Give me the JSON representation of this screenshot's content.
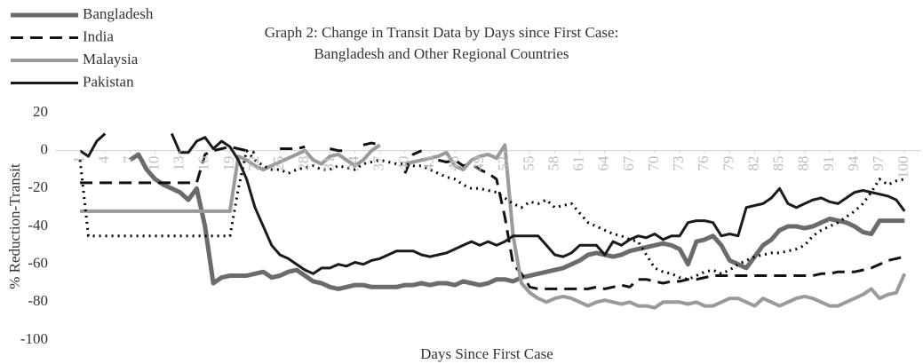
{
  "chart_data": {
    "type": "line",
    "title": [
      "Graph 2: Change in Transit Data by Days since First Case:",
      "Bangladesh and Other Regional Countries"
    ],
    "x_label": "Days Since First Case",
    "y_label": "% Reduction-Transit",
    "x": [
      1,
      2,
      3,
      4,
      5,
      6,
      7,
      8,
      9,
      10,
      11,
      12,
      13,
      14,
      15,
      16,
      17,
      18,
      19,
      20,
      21,
      22,
      23,
      24,
      25,
      26,
      27,
      28,
      29,
      30,
      31,
      32,
      33,
      34,
      35,
      36,
      37,
      38,
      39,
      40,
      41,
      42,
      43,
      44,
      45,
      46,
      47,
      48,
      49,
      50,
      51,
      52,
      53,
      54,
      55,
      56,
      57,
      58,
      59,
      60,
      61,
      62,
      63,
      64,
      65,
      66,
      67,
      68,
      69,
      70,
      71,
      72,
      73,
      74,
      75,
      76,
      77,
      78,
      79,
      80,
      81,
      82,
      83,
      84,
      85,
      86,
      87,
      88,
      89,
      90,
      91,
      92,
      93,
      94,
      95,
      96,
      97,
      98,
      99,
      100
    ],
    "xlim": [
      -2,
      102
    ],
    "xticks": [
      1,
      4,
      7,
      10,
      13,
      16,
      19,
      22,
      25,
      28,
      31,
      34,
      37,
      40,
      43,
      46,
      49,
      52,
      55,
      58,
      61,
      64,
      67,
      70,
      73,
      76,
      79,
      82,
      85,
      88,
      91,
      94,
      97,
      100
    ],
    "ylim": [
      -100,
      20
    ],
    "yticks": [
      -100,
      -80,
      -60,
      -40,
      -20,
      0,
      20
    ],
    "legend": "top-left",
    "series": [
      {
        "name": "Bangladesh",
        "color": "#6b6b6b",
        "width": 5,
        "dash": "solid",
        "values": [
          null,
          null,
          null,
          null,
          null,
          null,
          -5,
          -2,
          -10,
          -15,
          -18,
          -20,
          -22,
          -26,
          -20,
          -40,
          -70,
          -67,
          -66,
          -66,
          -66,
          -65,
          -64,
          -67,
          -66,
          -64,
          -63,
          -66,
          -69,
          -70,
          -72,
          -73,
          -72,
          -71,
          -71,
          -72,
          -72,
          -72,
          -72,
          -71,
          -71,
          -70,
          -71,
          -70,
          -70,
          -71,
          -69,
          -70,
          -71,
          -70,
          -68,
          -68,
          -69,
          -67,
          -66,
          -65,
          -64,
          -63,
          -62,
          -60,
          -58,
          -55,
          -54,
          -55,
          -56,
          -55,
          -53,
          -52,
          -51,
          -50,
          -49,
          -50,
          -52,
          -60,
          -48,
          -47,
          -45,
          -50,
          -58,
          -60,
          -62,
          -56,
          -50,
          -47,
          -42,
          -40,
          -40,
          -41,
          -40,
          -38,
          -36,
          -37,
          -38,
          -40,
          -43,
          -44,
          -37,
          -37,
          -37,
          -37
        ]
      },
      {
        "name": "India",
        "color": "#111111",
        "width": 3,
        "dash": "dashed",
        "values": [
          -17,
          -17,
          -17,
          -17,
          -17,
          -17,
          -17,
          -17,
          -17,
          -17,
          -17,
          -17,
          -17,
          -17,
          -17,
          -2,
          0,
          1,
          2,
          1,
          0,
          -1,
          null,
          null,
          1,
          1,
          1,
          2,
          null,
          null,
          1,
          0,
          0,
          null,
          3,
          4,
          3,
          null,
          null,
          -12,
          -2,
          0,
          null,
          -5,
          -6,
          -5,
          -8,
          -7,
          -10,
          -12,
          -15,
          -35,
          -60,
          -65,
          -72,
          -73,
          -73,
          -73,
          -73,
          -73,
          -73,
          -73,
          -72,
          -73,
          -72,
          -71,
          -72,
          -68,
          -68,
          -69,
          -70,
          -69,
          -69,
          -68,
          -68,
          -67,
          -66,
          -66,
          -66,
          -66,
          -66,
          -66,
          -66,
          -66,
          -66,
          -66,
          -66,
          -66,
          -66,
          -65,
          -65,
          -64,
          -64,
          -64,
          -63,
          -62,
          -60,
          -58,
          -57,
          -56
        ]
      },
      {
        "name": "Malaysia",
        "color": "#9a9a9a",
        "width": 4,
        "dash": "solid",
        "values": [
          -32,
          -32,
          -32,
          -32,
          -32,
          -32,
          -32,
          -32,
          -32,
          -32,
          -32,
          -32,
          -32,
          -32,
          -32,
          -32,
          -32,
          -32,
          -32,
          -3,
          -5,
          -8,
          -10,
          -8,
          -6,
          -4,
          -2,
          0,
          -5,
          -7,
          -3,
          -2,
          -5,
          -8,
          -5,
          0,
          3,
          null,
          null,
          -7,
          -6,
          -5,
          -4,
          -3,
          -1,
          -8,
          -10,
          -5,
          -3,
          -2,
          -4,
          3,
          -45,
          -70,
          -75,
          -78,
          -80,
          -78,
          -77,
          -78,
          -80,
          -82,
          -80,
          -79,
          -80,
          -81,
          -80,
          -82,
          -82,
          -83,
          -80,
          -80,
          -80,
          -81,
          -80,
          -82,
          -82,
          -80,
          -78,
          -78,
          -80,
          -82,
          -78,
          -80,
          -82,
          -80,
          -78,
          -77,
          -78,
          -80,
          -82,
          -82,
          -80,
          -78,
          -76,
          -73,
          -78,
          -76,
          -75,
          -65
        ]
      },
      {
        "name": "Pakistan",
        "color": "#1a1a1a",
        "width": 3,
        "dash": "solid",
        "values": [
          0,
          -3,
          5,
          9,
          null,
          null,
          null,
          null,
          null,
          null,
          null,
          9,
          -1,
          -1,
          5,
          7,
          1,
          5,
          2,
          -5,
          -15,
          -30,
          -40,
          -50,
          -55,
          -57,
          -60,
          -63,
          -65,
          -62,
          -62,
          -60,
          -61,
          -59,
          -60,
          -58,
          -57,
          -55,
          -53,
          -53,
          -53,
          -55,
          -56,
          -55,
          -54,
          -52,
          -50,
          -48,
          -50,
          -48,
          -50,
          -48,
          -45,
          -45,
          -45,
          -45,
          -50,
          -55,
          -56,
          -54,
          -50,
          -50,
          -50,
          -55,
          -48,
          -50,
          -47,
          -45,
          -46,
          -44,
          -47,
          -45,
          -45,
          -38,
          -37,
          -37,
          -38,
          -45,
          -44,
          -45,
          -30,
          -29,
          -28,
          -25,
          -20,
          -28,
          -30,
          -28,
          -26,
          -25,
          -27,
          -28,
          -25,
          -22,
          -21,
          -22,
          -23,
          -24,
          -26,
          -32
        ]
      },
      {
        "color": "#000000",
        "width": 3,
        "dash": "dotted",
        "values": [
          -5,
          -45,
          -45,
          -45,
          -45,
          -45,
          -45,
          -45,
          -45,
          -45,
          -45,
          -45,
          -45,
          -45,
          -45,
          -45,
          -45,
          -45,
          -45,
          -20,
          0,
          -5,
          -8,
          -10,
          -10,
          -12,
          -10,
          -9,
          -8,
          -10,
          -10,
          -8,
          -9,
          -10,
          -7,
          -6,
          -5,
          -6,
          -7,
          -7,
          -8,
          -8,
          -10,
          -12,
          -14,
          -15,
          -18,
          -20,
          -20,
          -21,
          -22,
          -25,
          -28,
          -30,
          -27,
          -28,
          -26,
          -30,
          -29,
          -28,
          -33,
          -38,
          -40,
          -42,
          -44,
          -45,
          -47,
          -48,
          -55,
          -62,
          -64,
          -65,
          -67,
          -68,
          -66,
          -64,
          -63,
          -65,
          -63,
          -60,
          -58,
          -56,
          -55,
          -54,
          -54,
          -53,
          -52,
          -50,
          -45,
          -42,
          -40,
          -38,
          -35,
          -32,
          -28,
          -22,
          -15,
          -18,
          -16,
          -15
        ]
      }
    ]
  }
}
